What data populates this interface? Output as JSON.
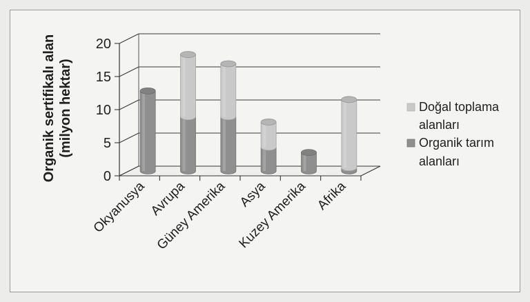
{
  "chart_data": {
    "type": "bar",
    "stacked": true,
    "three_d": true,
    "ylabel_line1": "Organik sertifikalı alan",
    "ylabel_line2": "(milyon hektar)",
    "ylim": [
      0,
      20
    ],
    "yticks": [
      0,
      5,
      10,
      15,
      20
    ],
    "grid": true,
    "legend_position": "right",
    "categories": [
      "Okyanusya",
      "Avrupa",
      "Güney Amerika",
      "Asya",
      "Kuzey Amerika",
      "Afrika"
    ],
    "series": [
      {
        "name": "Organik tarım alanları",
        "legend_line1": "Organik tarım",
        "legend_line2": "alanları",
        "values": [
          12.1,
          8.2,
          8.2,
          3.6,
          2.8,
          0.5
        ],
        "color": "#8f8f8f"
      },
      {
        "name": "Doğal toplama alanları",
        "legend_line1": "Doğal toplama",
        "legend_line2": "alanları",
        "values": [
          0,
          9.4,
          8.0,
          3.8,
          0,
          10.3
        ],
        "color": "#c9c9c9"
      }
    ]
  }
}
